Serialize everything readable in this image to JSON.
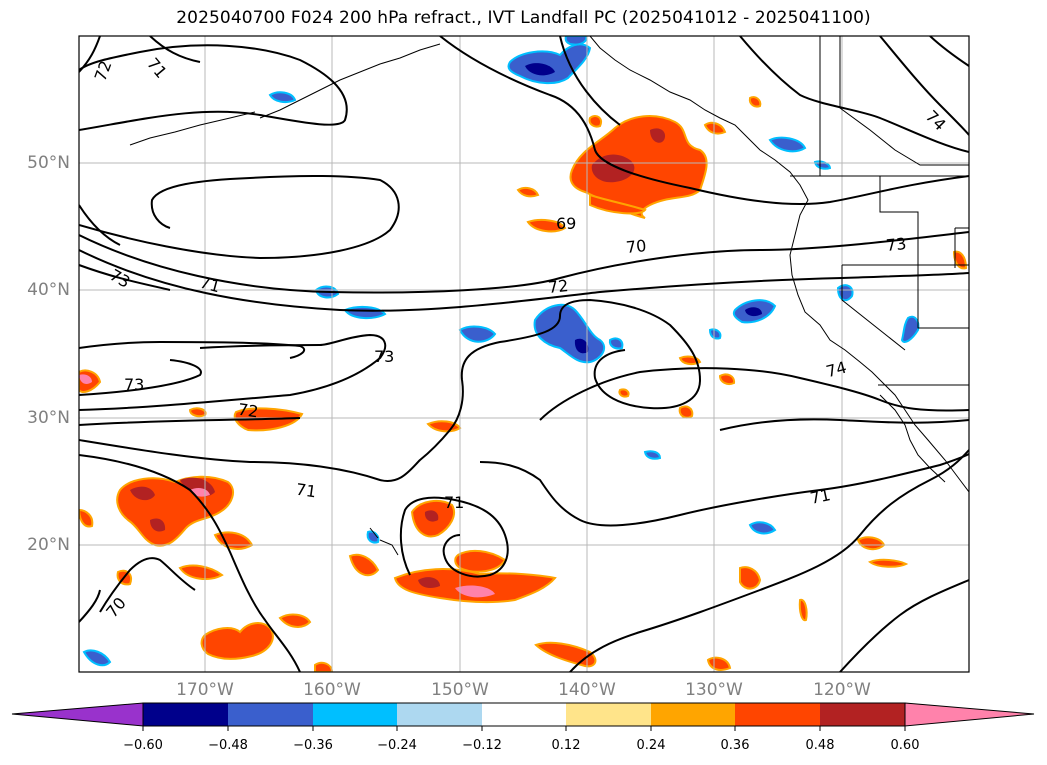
{
  "title": "2025040700 F024 200 hPa refract., IVT Landfall PC (2025041012 - 2025041100)",
  "lat_labels": [
    "50°N",
    "40°N",
    "30°N",
    "20°N"
  ],
  "lon_labels": [
    "170°W",
    "160°W",
    "150°W",
    "140°W",
    "130°W",
    "120°W"
  ],
  "contour_labels": [
    "72",
    "71",
    "73",
    "71",
    "69",
    "70",
    "72",
    "73",
    "73",
    "72",
    "71",
    "71",
    "71",
    "70",
    "73",
    "74",
    "74"
  ],
  "colorbar": {
    "ticks": [
      "−0.60",
      "−0.48",
      "−0.36",
      "−0.24",
      "−0.12",
      "0.12",
      "0.24",
      "0.36",
      "0.48",
      "0.60"
    ],
    "colors": [
      "#9932cc",
      "#00008b",
      "#3a5fcd",
      "#00bfff",
      "#add8f0",
      "#ffffff",
      "#ffe48a",
      "#ffa500",
      "#ff4500",
      "#b22222",
      "#ff82ab"
    ]
  }
}
